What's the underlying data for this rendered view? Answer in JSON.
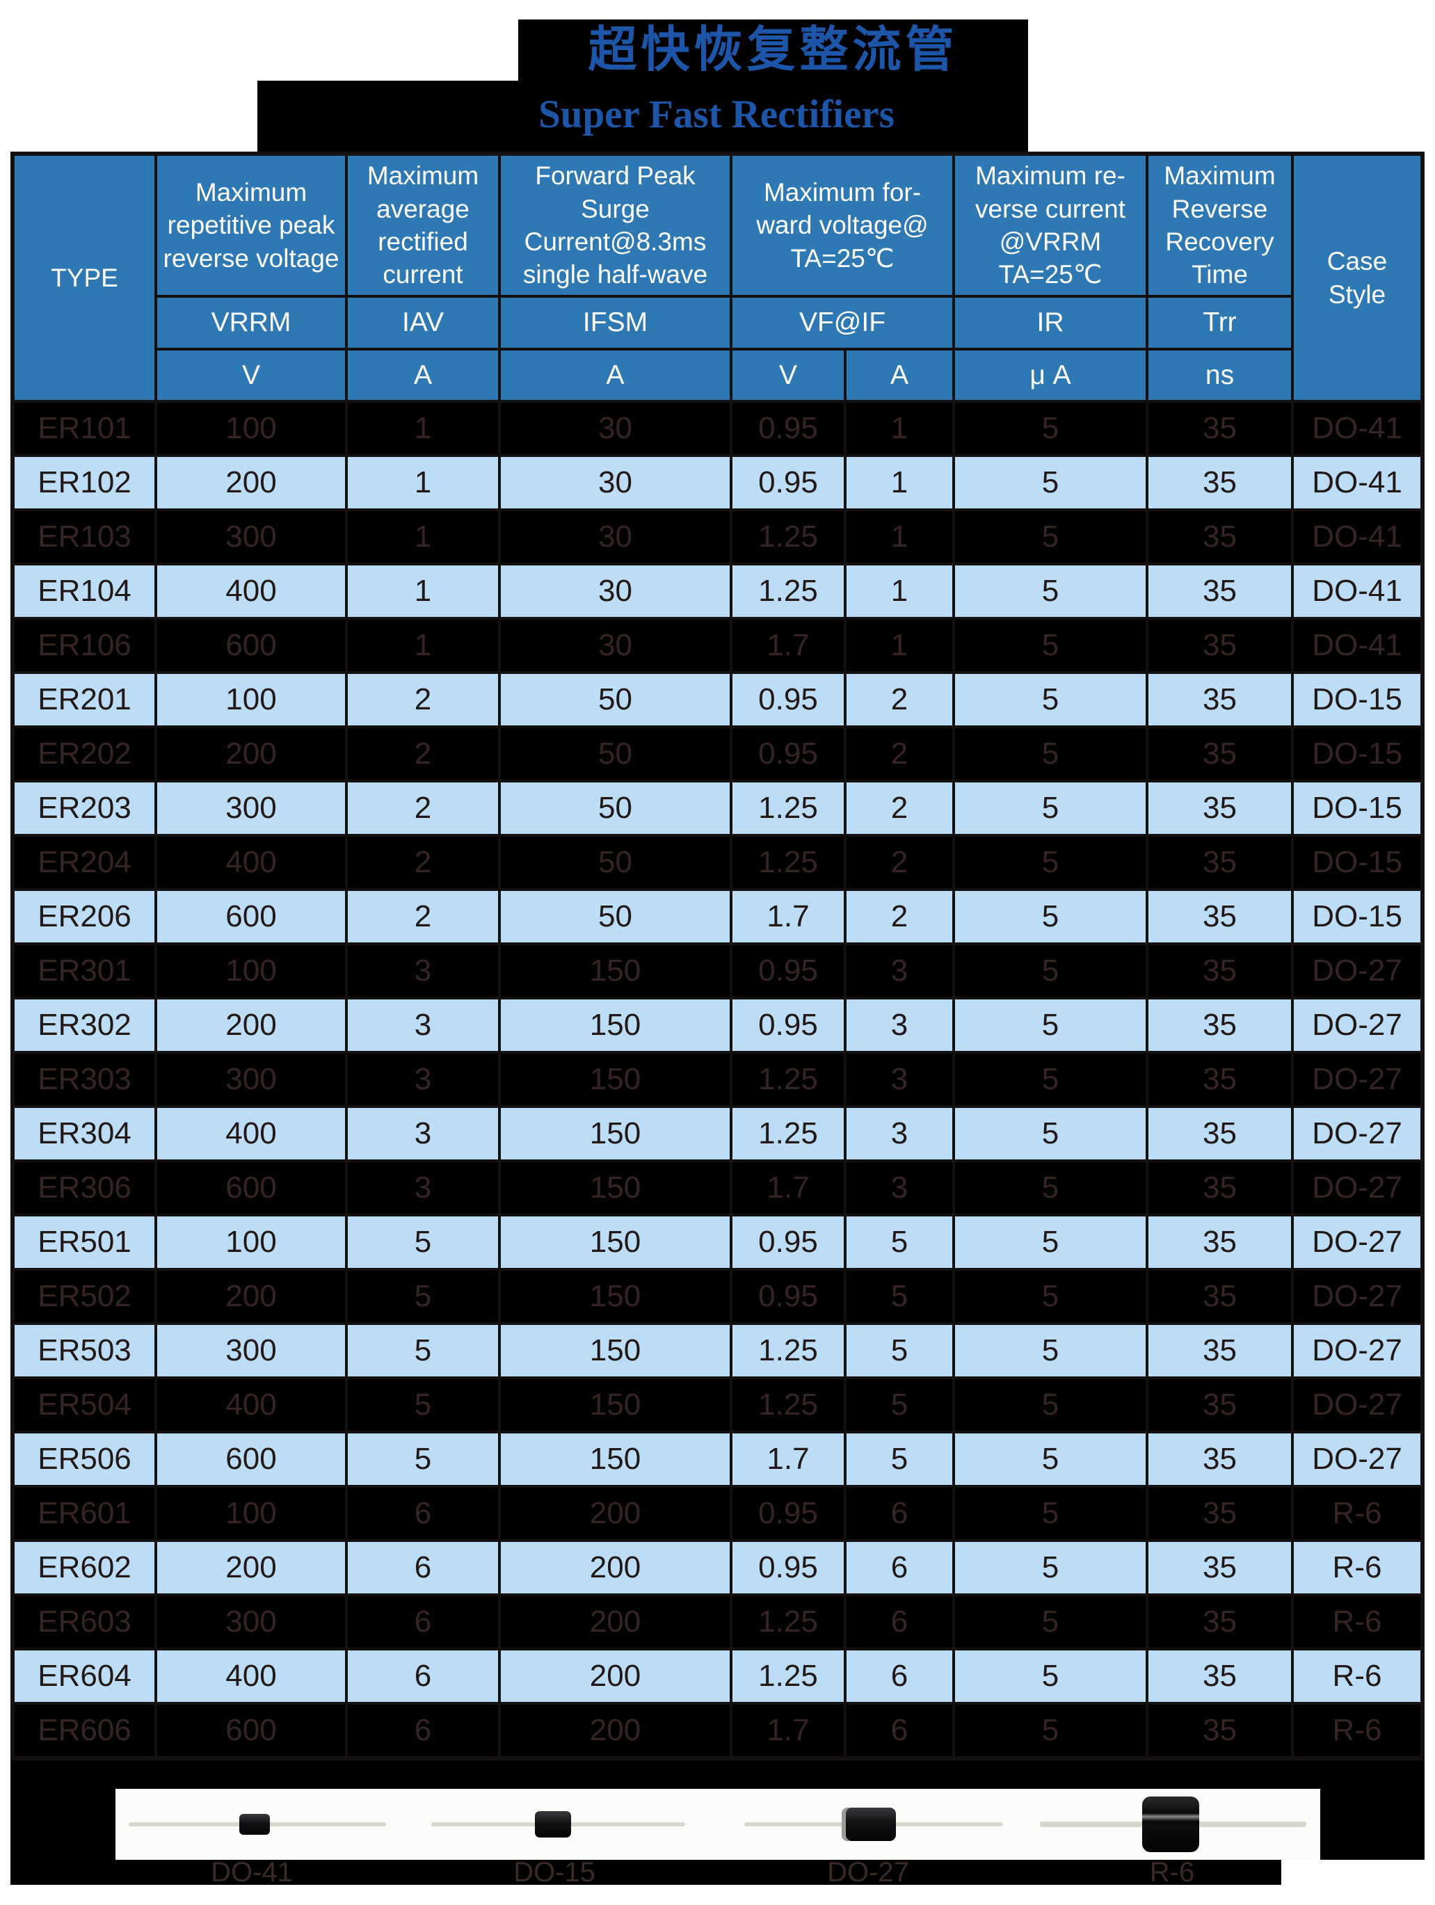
{
  "title": {
    "zh": "超快恢复整流管",
    "en": "Super Fast Rectifiers"
  },
  "colors": {
    "header_blue": "#2e78b4",
    "row_light_blue": "#bddcf6",
    "row_dark": "#000000",
    "title_blue": "#1d56a9",
    "dark_row_text": "#362424",
    "package_label_text": "#3a2a27"
  },
  "table": {
    "columns": {
      "type_label": "TYPE",
      "case_style_label": "Case Style",
      "groups": [
        {
          "title": "Maximum repetitive peak reverse voltage",
          "symbol": "VRRM",
          "units": [
            "V"
          ]
        },
        {
          "title": "Maximum average rectified current",
          "symbol": "IAV",
          "units": [
            "A"
          ]
        },
        {
          "title": "Forward Peak Surge Current@8.3ms single half-wave",
          "symbol": "IFSM",
          "units": [
            "A"
          ]
        },
        {
          "title": "Maximum for-ward voltage@ TA=25℃",
          "symbol": "VF@IF",
          "units": [
            "V",
            "A"
          ]
        },
        {
          "title": "Maximum re-verse current @VRRM TA=25℃",
          "symbol": "IR",
          "units": [
            "μ A"
          ]
        },
        {
          "title": "Maximum Reverse Recovery Time",
          "symbol": "Trr",
          "units": [
            "ns"
          ]
        }
      ]
    },
    "rows": [
      {
        "type": "ER101",
        "vrrm": "100",
        "iav": "1",
        "ifsm": "30",
        "vf": "0.95",
        "if": "1",
        "ir": "5",
        "trr": "35",
        "case": "DO-41"
      },
      {
        "type": "ER102",
        "vrrm": "200",
        "iav": "1",
        "ifsm": "30",
        "vf": "0.95",
        "if": "1",
        "ir": "5",
        "trr": "35",
        "case": "DO-41"
      },
      {
        "type": "ER103",
        "vrrm": "300",
        "iav": "1",
        "ifsm": "30",
        "vf": "1.25",
        "if": "1",
        "ir": "5",
        "trr": "35",
        "case": "DO-41"
      },
      {
        "type": "ER104",
        "vrrm": "400",
        "iav": "1",
        "ifsm": "30",
        "vf": "1.25",
        "if": "1",
        "ir": "5",
        "trr": "35",
        "case": "DO-41"
      },
      {
        "type": "ER106",
        "vrrm": "600",
        "iav": "1",
        "ifsm": "30",
        "vf": "1.7",
        "if": "1",
        "ir": "5",
        "trr": "35",
        "case": "DO-41"
      },
      {
        "type": "ER201",
        "vrrm": "100",
        "iav": "2",
        "ifsm": "50",
        "vf": "0.95",
        "if": "2",
        "ir": "5",
        "trr": "35",
        "case": "DO-15"
      },
      {
        "type": "ER202",
        "vrrm": "200",
        "iav": "2",
        "ifsm": "50",
        "vf": "0.95",
        "if": "2",
        "ir": "5",
        "trr": "35",
        "case": "DO-15"
      },
      {
        "type": "ER203",
        "vrrm": "300",
        "iav": "2",
        "ifsm": "50",
        "vf": "1.25",
        "if": "2",
        "ir": "5",
        "trr": "35",
        "case": "DO-15"
      },
      {
        "type": "ER204",
        "vrrm": "400",
        "iav": "2",
        "ifsm": "50",
        "vf": "1.25",
        "if": "2",
        "ir": "5",
        "trr": "35",
        "case": "DO-15"
      },
      {
        "type": "ER206",
        "vrrm": "600",
        "iav": "2",
        "ifsm": "50",
        "vf": "1.7",
        "if": "2",
        "ir": "5",
        "trr": "35",
        "case": "DO-15"
      },
      {
        "type": "ER301",
        "vrrm": "100",
        "iav": "3",
        "ifsm": "150",
        "vf": "0.95",
        "if": "3",
        "ir": "5",
        "trr": "35",
        "case": "DO-27"
      },
      {
        "type": "ER302",
        "vrrm": "200",
        "iav": "3",
        "ifsm": "150",
        "vf": "0.95",
        "if": "3",
        "ir": "5",
        "trr": "35",
        "case": "DO-27"
      },
      {
        "type": "ER303",
        "vrrm": "300",
        "iav": "3",
        "ifsm": "150",
        "vf": "1.25",
        "if": "3",
        "ir": "5",
        "trr": "35",
        "case": "DO-27"
      },
      {
        "type": "ER304",
        "vrrm": "400",
        "iav": "3",
        "ifsm": "150",
        "vf": "1.25",
        "if": "3",
        "ir": "5",
        "trr": "35",
        "case": "DO-27"
      },
      {
        "type": "ER306",
        "vrrm": "600",
        "iav": "3",
        "ifsm": "150",
        "vf": "1.7",
        "if": "3",
        "ir": "5",
        "trr": "35",
        "case": "DO-27"
      },
      {
        "type": "ER501",
        "vrrm": "100",
        "iav": "5",
        "ifsm": "150",
        "vf": "0.95",
        "if": "5",
        "ir": "5",
        "trr": "35",
        "case": "DO-27"
      },
      {
        "type": "ER502",
        "vrrm": "200",
        "iav": "5",
        "ifsm": "150",
        "vf": "0.95",
        "if": "5",
        "ir": "5",
        "trr": "35",
        "case": "DO-27"
      },
      {
        "type": "ER503",
        "vrrm": "300",
        "iav": "5",
        "ifsm": "150",
        "vf": "1.25",
        "if": "5",
        "ir": "5",
        "trr": "35",
        "case": "DO-27"
      },
      {
        "type": "ER504",
        "vrrm": "400",
        "iav": "5",
        "ifsm": "150",
        "vf": "1.25",
        "if": "5",
        "ir": "5",
        "trr": "35",
        "case": "DO-27"
      },
      {
        "type": "ER506",
        "vrrm": "600",
        "iav": "5",
        "ifsm": "150",
        "vf": "1.7",
        "if": "5",
        "ir": "5",
        "trr": "35",
        "case": "DO-27"
      },
      {
        "type": "ER601",
        "vrrm": "100",
        "iav": "6",
        "ifsm": "200",
        "vf": "0.95",
        "if": "6",
        "ir": "5",
        "trr": "35",
        "case": "R-6"
      },
      {
        "type": "ER602",
        "vrrm": "200",
        "iav": "6",
        "ifsm": "200",
        "vf": "0.95",
        "if": "6",
        "ir": "5",
        "trr": "35",
        "case": "R-6"
      },
      {
        "type": "ER603",
        "vrrm": "300",
        "iav": "6",
        "ifsm": "200",
        "vf": "1.25",
        "if": "6",
        "ir": "5",
        "trr": "35",
        "case": "R-6"
      },
      {
        "type": "ER604",
        "vrrm": "400",
        "iav": "6",
        "ifsm": "200",
        "vf": "1.25",
        "if": "6",
        "ir": "5",
        "trr": "35",
        "case": "R-6"
      },
      {
        "type": "ER606",
        "vrrm": "600",
        "iav": "6",
        "ifsm": "200",
        "vf": "1.7",
        "if": "6",
        "ir": "5",
        "trr": "35",
        "case": "R-6"
      }
    ]
  },
  "packages": [
    {
      "label": "DO-41"
    },
    {
      "label": "DO-15"
    },
    {
      "label": "DO-27"
    },
    {
      "label": "R-6"
    }
  ]
}
